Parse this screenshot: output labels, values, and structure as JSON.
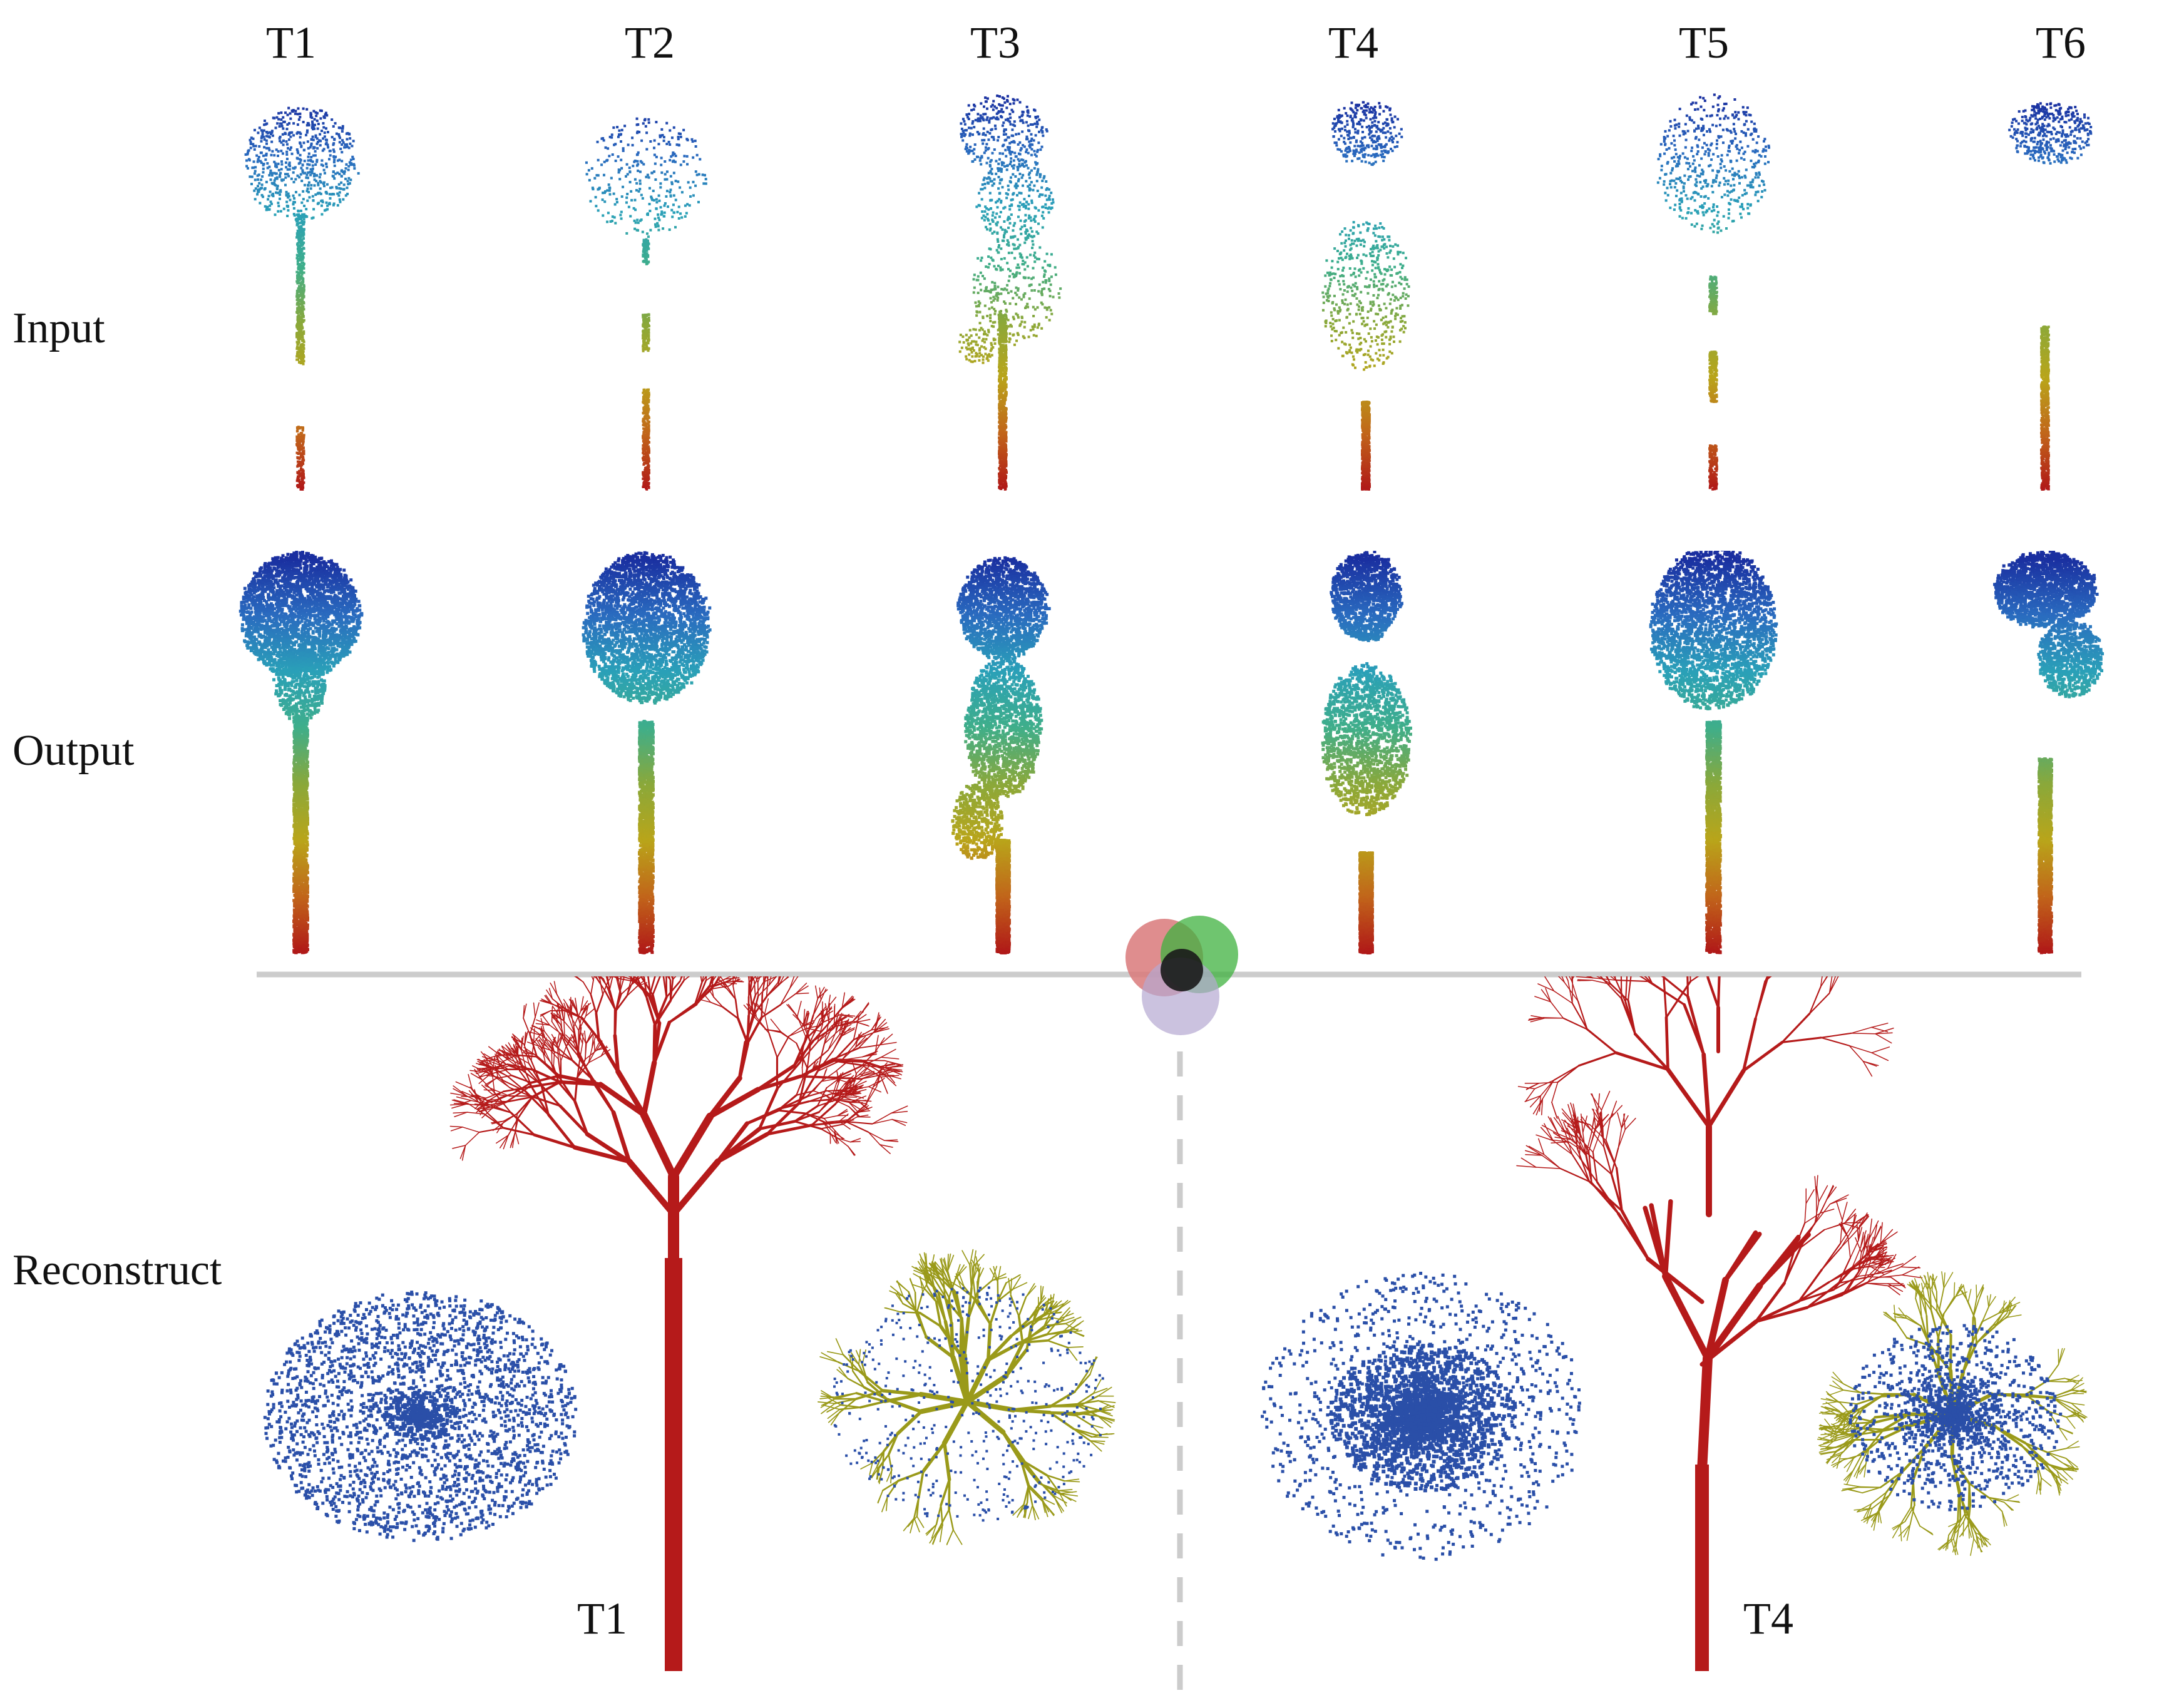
{
  "figure": {
    "columns": [
      "T1",
      "T2",
      "T3",
      "T4",
      "T5",
      "T6"
    ],
    "rows": {
      "input": "Input",
      "output": "Output",
      "reconstruct": "Reconstruct"
    },
    "reconstruct_labels": [
      "T1",
      "T4"
    ],
    "colormap": [
      "#1a2fa0",
      "#2a6bbf",
      "#2aa0b8",
      "#3fae8a",
      "#8aa83a",
      "#b9a51a",
      "#c1651a",
      "#b01818"
    ],
    "branch_color": "#b51a1a",
    "skeleton_color": "#9a9a1a",
    "divider_color": "#cccccc",
    "venn_colors": [
      "#d9797a",
      "#3fb23f",
      "#b5a8d1"
    ]
  }
}
